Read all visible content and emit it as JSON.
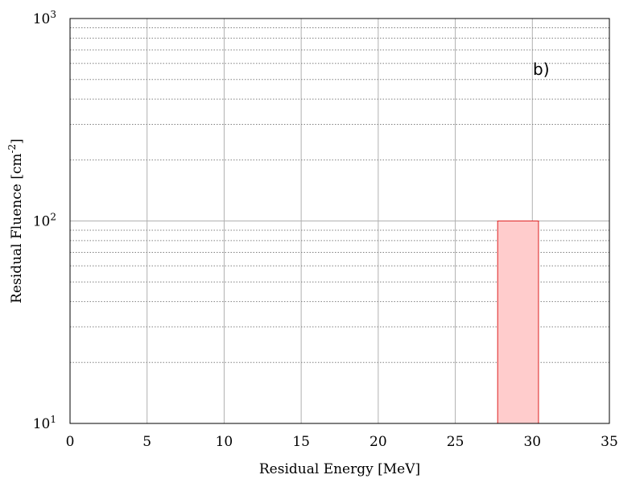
{
  "chart_data": {
    "type": "bar",
    "title": "",
    "panel_label": "b)",
    "xlabel": "Residual Energy [MeV]",
    "ylabel_main": "Residual Fluence [cm",
    "ylabel_sup": "-2",
    "ylabel_end": "]",
    "xlim": [
      0,
      35
    ],
    "ylim": [
      10,
      1000
    ],
    "y_scale": "log",
    "grid": true,
    "x_ticks": [
      "0",
      "5",
      "10",
      "15",
      "20",
      "25",
      "30",
      "35"
    ],
    "y_ticks": [
      {
        "base": "10",
        "exp": "1",
        "value": 10
      },
      {
        "base": "10",
        "exp": "2",
        "value": 100
      },
      {
        "base": "10",
        "exp": "3",
        "value": 1000
      }
    ],
    "bars": [
      {
        "x_start": 27.75,
        "x_end": 30.4,
        "value": 100
      }
    ],
    "colors": {
      "bar_fill": "#ffcccc",
      "bar_edge": "#dd2222",
      "grid": "#b0b0b0"
    }
  }
}
